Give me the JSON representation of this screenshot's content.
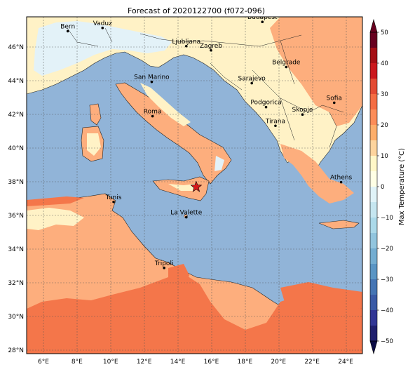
{
  "title": "Forecast of 2020122700 (f072-096)",
  "map": {
    "lon_ticks": [
      "6°E",
      "8°E",
      "10°E",
      "12°E",
      "14°E",
      "16°E",
      "18°E",
      "20°E",
      "22°E",
      "24°E"
    ],
    "lat_ticks": [
      "28°N",
      "30°N",
      "32°N",
      "34°N",
      "36°N",
      "38°N",
      "40°N",
      "42°N",
      "44°N",
      "46°N"
    ],
    "extent": {
      "lon": [
        5.0,
        25.0
      ],
      "lat": [
        27.8,
        47.8
      ]
    },
    "grid": true,
    "marker": {
      "name": "forecast-point",
      "lon": 15.1,
      "lat": 37.7,
      "color": "#d7191c"
    },
    "cities": [
      {
        "name": "Bern",
        "lon": 7.45,
        "lat": 46.95
      },
      {
        "name": "Vaduz",
        "lon": 9.52,
        "lat": 47.14
      },
      {
        "name": "Ljubljana",
        "lon": 14.51,
        "lat": 46.06
      },
      {
        "name": "Zagreb",
        "lon": 15.98,
        "lat": 45.81
      },
      {
        "name": "Budapest",
        "lon": 19.04,
        "lat": 47.5
      },
      {
        "name": "San Marino",
        "lon": 12.45,
        "lat": 43.94
      },
      {
        "name": "Sarajevo",
        "lon": 18.41,
        "lat": 43.86
      },
      {
        "name": "Belgrade",
        "lon": 20.46,
        "lat": 44.82
      },
      {
        "name": "Roma",
        "lon": 12.5,
        "lat": 41.9
      },
      {
        "name": "Podgorica",
        "lon": 19.26,
        "lat": 42.44
      },
      {
        "name": "Skopje",
        "lon": 21.43,
        "lat": 42.0
      },
      {
        "name": "Sofia",
        "lon": 23.32,
        "lat": 42.7
      },
      {
        "name": "Tirana",
        "lon": 19.82,
        "lat": 41.33
      },
      {
        "name": "Athens",
        "lon": 23.73,
        "lat": 37.98
      },
      {
        "name": "Tunis",
        "lon": 10.18,
        "lat": 36.81
      },
      {
        "name": "La Valette",
        "lon": 14.51,
        "lat": 35.9
      },
      {
        "name": "Tripoli",
        "lon": 13.19,
        "lat": 32.89
      }
    ]
  },
  "colorbar": {
    "label": "Max Temperature (°C)",
    "ticks": [
      "50",
      "40",
      "30",
      "20",
      "10",
      "0",
      "−10",
      "−20",
      "−30",
      "−40",
      "−50"
    ],
    "bands": [
      {
        "range": [
          45,
          50
        ],
        "color": "#67001f"
      },
      {
        "range": [
          40,
          45
        ],
        "color": "#a50f15"
      },
      {
        "range": [
          35,
          40
        ],
        "color": "#cb181d"
      },
      {
        "range": [
          30,
          35
        ],
        "color": "#e34a33"
      },
      {
        "range": [
          25,
          30
        ],
        "color": "#f46d43"
      },
      {
        "range": [
          20,
          25
        ],
        "color": "#fc8d59"
      },
      {
        "range": [
          15,
          20
        ],
        "color": "#fdae6b"
      },
      {
        "range": [
          10,
          15
        ],
        "color": "#fdd49e"
      },
      {
        "range": [
          5,
          10
        ],
        "color": "#fff7c8"
      },
      {
        "range": [
          0,
          5
        ],
        "color": "#ffffe5"
      },
      {
        "range": [
          -5,
          0
        ],
        "color": "#e0f3f8"
      },
      {
        "range": [
          -10,
          -5
        ],
        "color": "#c6e6f0"
      },
      {
        "range": [
          -15,
          -10
        ],
        "color": "#abd9e9"
      },
      {
        "range": [
          -20,
          -15
        ],
        "color": "#92c5de"
      },
      {
        "range": [
          -25,
          -20
        ],
        "color": "#74add1"
      },
      {
        "range": [
          -30,
          -25
        ],
        "color": "#5a95c4"
      },
      {
        "range": [
          -35,
          -30
        ],
        "color": "#4575b4"
      },
      {
        "range": [
          -40,
          -35
        ],
        "color": "#3a5aa6"
      },
      {
        "range": [
          -45,
          -40
        ],
        "color": "#313695"
      },
      {
        "range": [
          -50,
          -45
        ],
        "color": "#1f1f6e"
      }
    ]
  },
  "colors": {
    "sea": "#91b4d8",
    "land_warm": "#fdae7d",
    "land_hot": "#f4764a",
    "land_mild": "#fff2c6",
    "land_cold": "#e3f2f8",
    "accent": "#f26b43"
  }
}
